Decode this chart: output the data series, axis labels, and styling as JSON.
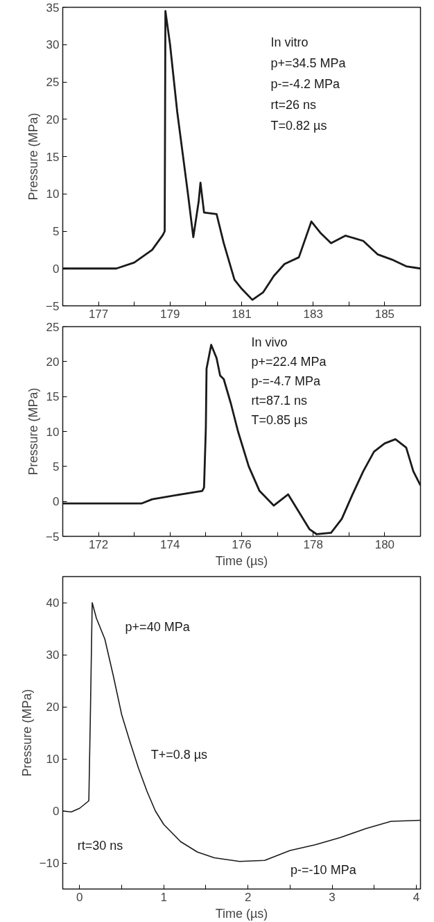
{
  "chart_data": [
    {
      "type": "line",
      "ylabel": "Pressure (MPa)",
      "annotations": [
        "In vitro",
        "p+=34.5 MPa",
        "p-=-4.2 MPa",
        "rt=26 ns",
        "T=0.82 µs"
      ],
      "xlim": [
        176,
        186
      ],
      "ylim": [
        -5,
        35
      ],
      "xticks": [
        177,
        {
          "value": 178,
          "label": null
        },
        179,
        {
          "value": 180,
          "label": null
        },
        181,
        {
          "value": 182,
          "label": null
        },
        183,
        {
          "value": 184,
          "label": null
        },
        185
      ],
      "yticks": [
        -5,
        0,
        5,
        10,
        15,
        20,
        25,
        30,
        35
      ],
      "grid": false,
      "line_style": "solid",
      "series": [
        {
          "color": "#1a1a1a",
          "x": [
            176,
            177.5,
            178,
            178.5,
            178.8,
            178.85,
            178.87,
            179.0,
            179.2,
            179.5,
            179.65,
            179.8,
            179.85,
            179.95,
            180.3,
            180.5,
            180.8,
            181.0,
            181.3,
            181.6,
            181.9,
            182.2,
            182.6,
            182.95,
            183.2,
            183.5,
            183.9,
            184.4,
            184.8,
            185.2,
            185.6,
            186
          ],
          "values": [
            0,
            0,
            0.8,
            2.5,
            4.5,
            5,
            34.5,
            30,
            21,
            10,
            4.2,
            9,
            11.5,
            7.5,
            7.3,
            3.4,
            -1.5,
            -2.7,
            -4.2,
            -3.2,
            -1,
            0.6,
            1.5,
            6.3,
            4.8,
            3.4,
            4.4,
            3.7,
            1.9,
            1.2,
            0.3,
            0
          ]
        }
      ]
    },
    {
      "type": "line",
      "xlabel": "Time (µs)",
      "ylabel": "Pressure (MPa)",
      "annotations": [
        "In vivo",
        "p+=22.4 MPa",
        "p-=-4.7 MPa",
        "rt=87.1 ns",
        "T=0.85 µs"
      ],
      "xlim": [
        171,
        181
      ],
      "ylim": [
        -5,
        25
      ],
      "xticks": [
        172,
        {
          "value": 173,
          "label": null
        },
        174,
        {
          "value": 175,
          "label": null
        },
        176,
        {
          "value": 177,
          "label": null
        },
        178,
        {
          "value": 179,
          "label": null
        },
        180
      ],
      "yticks": [
        -5,
        0,
        5,
        10,
        15,
        20,
        25
      ],
      "grid": false,
      "line_style": "solid",
      "series": [
        {
          "color": "#1a1a1a",
          "x": [
            171,
            173.2,
            173.5,
            174.3,
            174.9,
            174.95,
            175.0,
            175.02,
            175.15,
            175.3,
            175.4,
            175.5,
            175.7,
            175.9,
            176.2,
            176.5,
            176.9,
            177.3,
            177.6,
            177.9,
            178.1,
            178.5,
            178.8,
            179.1,
            179.4,
            179.7,
            180.0,
            180.3,
            180.6,
            180.8,
            181
          ],
          "values": [
            -0.3,
            -0.3,
            0.3,
            1,
            1.5,
            2,
            10.5,
            19,
            22.4,
            20.5,
            18,
            17.5,
            14,
            10,
            5,
            1.5,
            -0.6,
            1,
            -1.5,
            -4,
            -4.7,
            -4.5,
            -2.5,
            1,
            4.3,
            7.1,
            8.3,
            8.9,
            7.7,
            4.3,
            2.3
          ]
        }
      ]
    },
    {
      "type": "line",
      "xlabel": "Time (µs)",
      "ylabel": "Pressure (MPa)",
      "annotations": [
        "p+=40 MPa",
        "T+=0.8 µs",
        "rt=30 ns",
        "p-=-10 MPa"
      ],
      "xlim": [
        -0.2,
        4.05
      ],
      "ylim": [
        -15,
        45
      ],
      "xticks": [
        0,
        {
          "value": 0.5,
          "label": null
        },
        1,
        {
          "value": 1.5,
          "label": null
        },
        2,
        {
          "value": 2.5,
          "label": null
        },
        3,
        {
          "value": 3.5,
          "label": null
        },
        4
      ],
      "yticks": [
        -10,
        0,
        10,
        20,
        30,
        40
      ],
      "grid": false,
      "line_style": "solid",
      "series": [
        {
          "color": "#1a1a1a",
          "x": [
            -0.2,
            -0.1,
            0.0,
            0.1,
            0.11,
            0.13,
            0.15,
            0.2,
            0.3,
            0.4,
            0.5,
            0.6,
            0.7,
            0.8,
            0.9,
            1.0,
            1.2,
            1.4,
            1.6,
            1.9,
            2.2,
            2.5,
            2.8,
            3.1,
            3.4,
            3.7,
            4.05
          ],
          "values": [
            0,
            -0.2,
            0.5,
            1.8,
            2,
            20,
            40,
            37,
            33,
            26,
            18.5,
            13.2,
            8.2,
            3.8,
            0,
            -2.6,
            -5.9,
            -7.9,
            -9,
            -9.7,
            -9.5,
            -7.6,
            -6.5,
            -5.1,
            -3.4,
            -2,
            -1.8
          ]
        }
      ]
    }
  ]
}
